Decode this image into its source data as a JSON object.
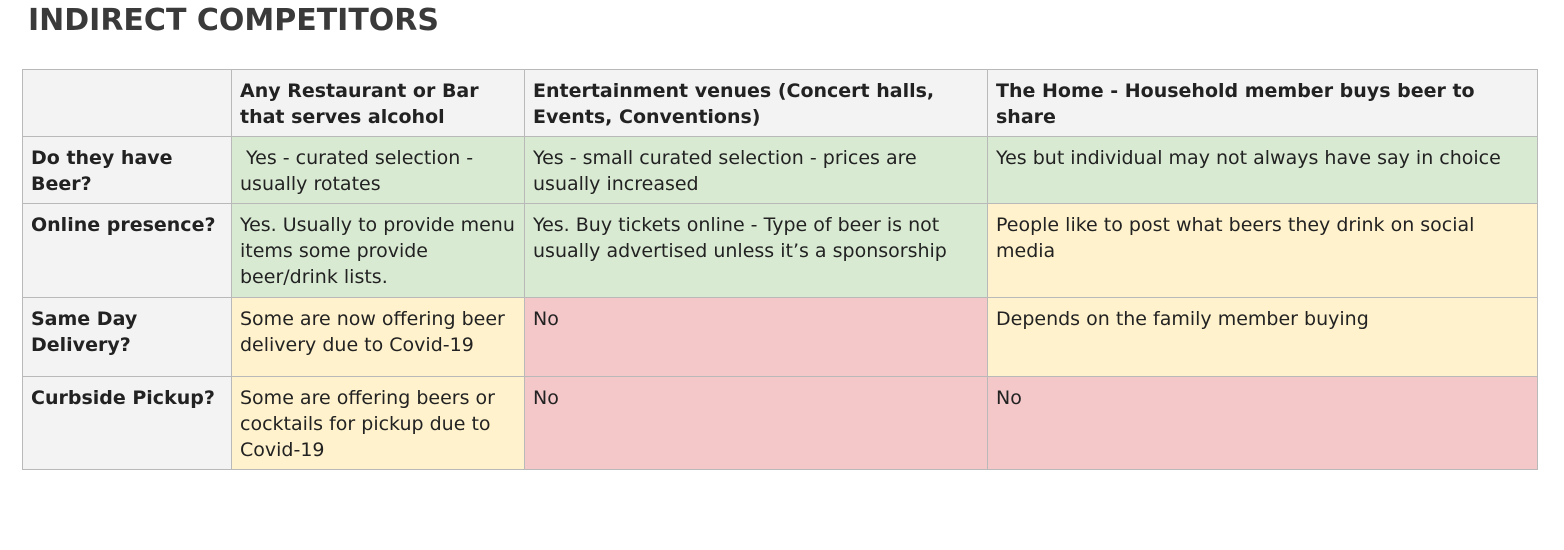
{
  "title": "INDIRECT COMPETITORS",
  "table": {
    "headers": [
      "",
      "Any Restaurant or Bar that serves alcohol",
      "Entertainment venues (Concert halls, Events, Conventions)",
      "The Home - Household member buys beer to share"
    ],
    "rows": [
      {
        "label": "Do they have Beer?",
        "cells": [
          " Yes - curated selection - usually rotates",
          "Yes - small curated selection - prices are usually increased",
          "Yes but individual may not always have say in choice"
        ]
      },
      {
        "label": "Online presence?",
        "cells": [
          "Yes. Usually to provide menu items some provide beer/drink lists.",
          "Yes. Buy tickets online - Type of beer is not usually advertised unless it’s a sponsorship",
          "People like to post what beers they drink on social media"
        ]
      },
      {
        "label": "Same Day Delivery?",
        "cells": [
          "Some are now offering beer delivery due to Covid-19",
          "No",
          "Depends on the family member buying"
        ]
      },
      {
        "label": "Curbside Pickup?",
        "cells": [
          "Some are offering beers or cocktails for pickup due to Covid-19",
          "No",
          "No"
        ]
      }
    ]
  },
  "colors": {
    "header_bg": "#f3f3f3",
    "green": "#d9ead3",
    "yellow": "#fff2cc",
    "red": "#f4c7c9",
    "border": "#b9b9b9"
  }
}
